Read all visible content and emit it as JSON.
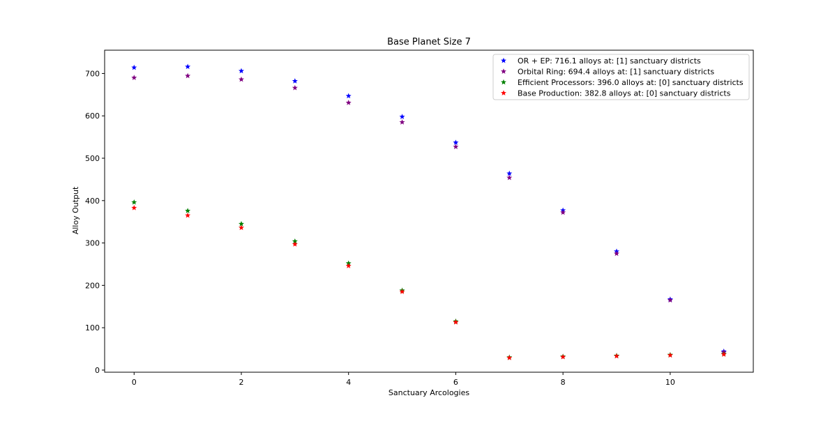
{
  "chart_data": {
    "type": "scatter",
    "title": "Base Planet Size 7",
    "xlabel": "Sanctuary Arcologies",
    "ylabel": "Alloy Output",
    "xlim": [
      -0.55,
      11.55
    ],
    "ylim": [
      -5,
      755
    ],
    "xticks": [
      0,
      2,
      4,
      6,
      8,
      10
    ],
    "yticks": [
      0,
      100,
      200,
      300,
      400,
      500,
      600,
      700
    ],
    "grid": false,
    "legend_position": "top-right",
    "marker": "star",
    "x": [
      0,
      1,
      2,
      3,
      4,
      5,
      6,
      7,
      8,
      9,
      10,
      11
    ],
    "series": [
      {
        "name": "OR + EP: 716.1 alloys at: [1] sanctuary districts",
        "color": "#0000ff",
        "values": [
          714,
          716.1,
          706,
          682,
          647,
          598,
          537,
          464,
          377,
          280,
          167,
          44
        ]
      },
      {
        "name": "Orbital Ring: 694.4 alloys at: [1] sanctuary districts",
        "color": "#800080",
        "values": [
          690,
          694.4,
          686,
          666,
          631,
          585,
          527,
          454,
          372,
          275,
          165,
          42
        ]
      },
      {
        "name": "Efficient Processors: 396.0 alloys at: [0] sanctuary districts",
        "color": "#008000",
        "values": [
          396.0,
          376,
          345,
          304,
          252,
          188,
          115,
          30,
          32,
          34,
          36,
          38
        ]
      },
      {
        "name": "Base Production: 382.8 alloys at: [0] sanctuary districts",
        "color": "#ff0000",
        "values": [
          382.8,
          365,
          336,
          297,
          246,
          185,
          113,
          29,
          31,
          33,
          35,
          37
        ]
      }
    ]
  }
}
